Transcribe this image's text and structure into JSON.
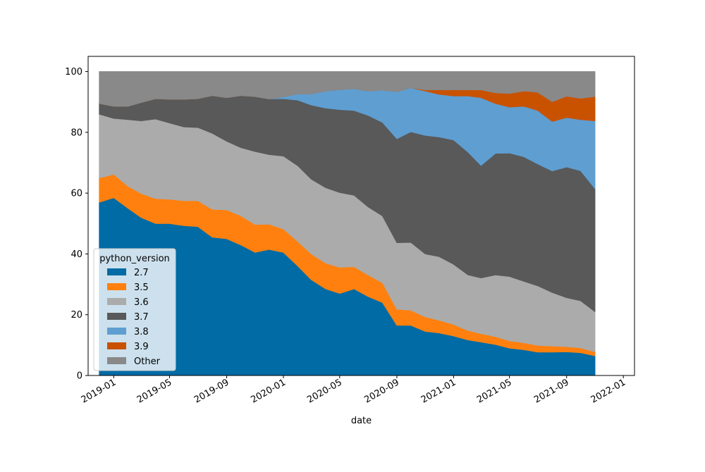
{
  "chart_data": {
    "type": "area",
    "stacked": true,
    "xlabel": "date",
    "ylabel": "",
    "ylim": [
      0,
      105
    ],
    "xlim": [
      "2018-11-07",
      "2022-01-25"
    ],
    "y_ticks": [
      0,
      20,
      40,
      60,
      80,
      100
    ],
    "x_ticks": [
      {
        "date": "2019-01-01",
        "label": "2019-01"
      },
      {
        "date": "2019-05-01",
        "label": "2019-05"
      },
      {
        "date": "2019-09-01",
        "label": "2019-09"
      },
      {
        "date": "2020-01-01",
        "label": "2020-01"
      },
      {
        "date": "2020-05-01",
        "label": "2020-05"
      },
      {
        "date": "2020-09-01",
        "label": "2020-09"
      },
      {
        "date": "2021-01-01",
        "label": "2021-01"
      },
      {
        "date": "2021-05-01",
        "label": "2021-05"
      },
      {
        "date": "2021-09-01",
        "label": "2021-09"
      },
      {
        "date": "2022-01-01",
        "label": "2022-01"
      }
    ],
    "grid": false,
    "legend": {
      "title": "python_version",
      "placement": "lower-left"
    },
    "x": [
      "2018-12-01",
      "2019-01-01",
      "2019-02-01",
      "2019-03-01",
      "2019-04-01",
      "2019-05-01",
      "2019-06-01",
      "2019-07-01",
      "2019-08-01",
      "2019-09-01",
      "2019-10-01",
      "2019-11-01",
      "2019-12-01",
      "2020-01-01",
      "2020-02-01",
      "2020-03-01",
      "2020-04-01",
      "2020-05-01",
      "2020-06-01",
      "2020-07-01",
      "2020-08-01",
      "2020-09-01",
      "2020-10-01",
      "2020-11-01",
      "2020-12-01",
      "2021-01-01",
      "2021-02-01",
      "2021-03-01",
      "2021-04-01",
      "2021-05-01",
      "2021-06-01",
      "2021-07-01",
      "2021-08-01",
      "2021-09-01",
      "2021-10-01",
      "2021-11-01"
    ],
    "series": [
      {
        "name": "2.7",
        "color": "#006ba4",
        "values": [
          57.0,
          58.5,
          55.0,
          52.0,
          50.0,
          50.0,
          49.3,
          49.0,
          45.5,
          45.0,
          43.0,
          40.5,
          41.5,
          40.5,
          36.0,
          31.5,
          28.5,
          27.0,
          28.5,
          26.0,
          24.0,
          16.5,
          16.5,
          14.5,
          14.0,
          13.0,
          11.7,
          11.0,
          10.2,
          9.0,
          8.5,
          7.7,
          7.7,
          7.8,
          7.5,
          6.5
        ]
      },
      {
        "name": "3.5",
        "color": "#ff800e",
        "values": [
          8.0,
          7.7,
          7.3,
          7.9,
          8.2,
          8.0,
          8.2,
          8.5,
          9.2,
          9.5,
          9.6,
          9.2,
          8.3,
          7.7,
          8.1,
          8.5,
          8.5,
          8.6,
          7.3,
          7.1,
          6.5,
          5.3,
          5.0,
          4.8,
          4.2,
          3.8,
          3.1,
          2.8,
          2.6,
          2.4,
          2.3,
          2.2,
          2.0,
          1.7,
          1.6,
          1.3
        ]
      },
      {
        "name": "3.6",
        "color": "#ababab",
        "values": [
          21.0,
          18.4,
          21.9,
          23.9,
          26.2,
          25.1,
          24.3,
          24.1,
          25.0,
          22.6,
          22.4,
          24.0,
          22.9,
          24.0,
          24.9,
          24.6,
          24.8,
          24.6,
          23.5,
          22.4,
          22.0,
          21.9,
          22.3,
          20.7,
          20.9,
          19.8,
          18.3,
          18.3,
          20.3,
          21.2,
          20.2,
          19.6,
          17.6,
          16.1,
          15.5,
          13.2
        ]
      },
      {
        "name": "3.7",
        "color": "#595959",
        "values": [
          3.5,
          4.0,
          4.4,
          6.0,
          6.7,
          7.8,
          9.1,
          9.5,
          12.4,
          14.3,
          17.1,
          18.1,
          18.3,
          18.9,
          21.6,
          24.4,
          26.2,
          27.3,
          27.9,
          30.1,
          30.8,
          34.2,
          36.4,
          39.0,
          39.4,
          40.9,
          40.4,
          37.0,
          40.0,
          40.6,
          41.0,
          40.1,
          40.0,
          43.0,
          42.8,
          40.5
        ]
      },
      {
        "name": "3.8",
        "color": "#5f9ed1",
        "values": [
          0,
          0,
          0,
          0,
          0,
          0,
          0,
          0,
          0,
          0,
          0,
          0,
          0,
          0.6,
          2.1,
          3.7,
          5.6,
          6.6,
          7.2,
          8.0,
          10.6,
          15.5,
          14.5,
          14.6,
          14.0,
          14.5,
          18.5,
          22.3,
          16.4,
          15.1,
          16.6,
          17.6,
          16.3,
          16.3,
          16.8,
          22.3
        ]
      },
      {
        "name": "3.9",
        "color": "#c85200",
        "values": [
          0,
          0,
          0,
          0,
          0,
          0,
          0,
          0,
          0,
          0,
          0,
          0,
          0,
          0,
          0,
          0,
          0,
          0,
          0,
          0,
          0,
          0,
          0,
          0.4,
          1.5,
          2.0,
          2.0,
          2.6,
          3.5,
          4.5,
          5.0,
          6.0,
          6.5,
          7.0,
          7.0,
          8.0
        ]
      },
      {
        "name": "Other",
        "color": "#898989",
        "values": [
          10.5,
          11.4,
          11.4,
          10.2,
          8.9,
          9.1,
          9.1,
          8.9,
          7.9,
          8.6,
          7.9,
          8.2,
          9.0,
          8.3,
          7.3,
          7.3,
          6.4,
          5.9,
          5.6,
          6.4,
          6.1,
          6.6,
          5.3,
          6.0,
          6.0,
          6.0,
          6.0,
          6.0,
          7.0,
          7.2,
          6.4,
          6.8,
          9.9,
          8.1,
          8.8,
          8.2
        ]
      }
    ]
  }
}
